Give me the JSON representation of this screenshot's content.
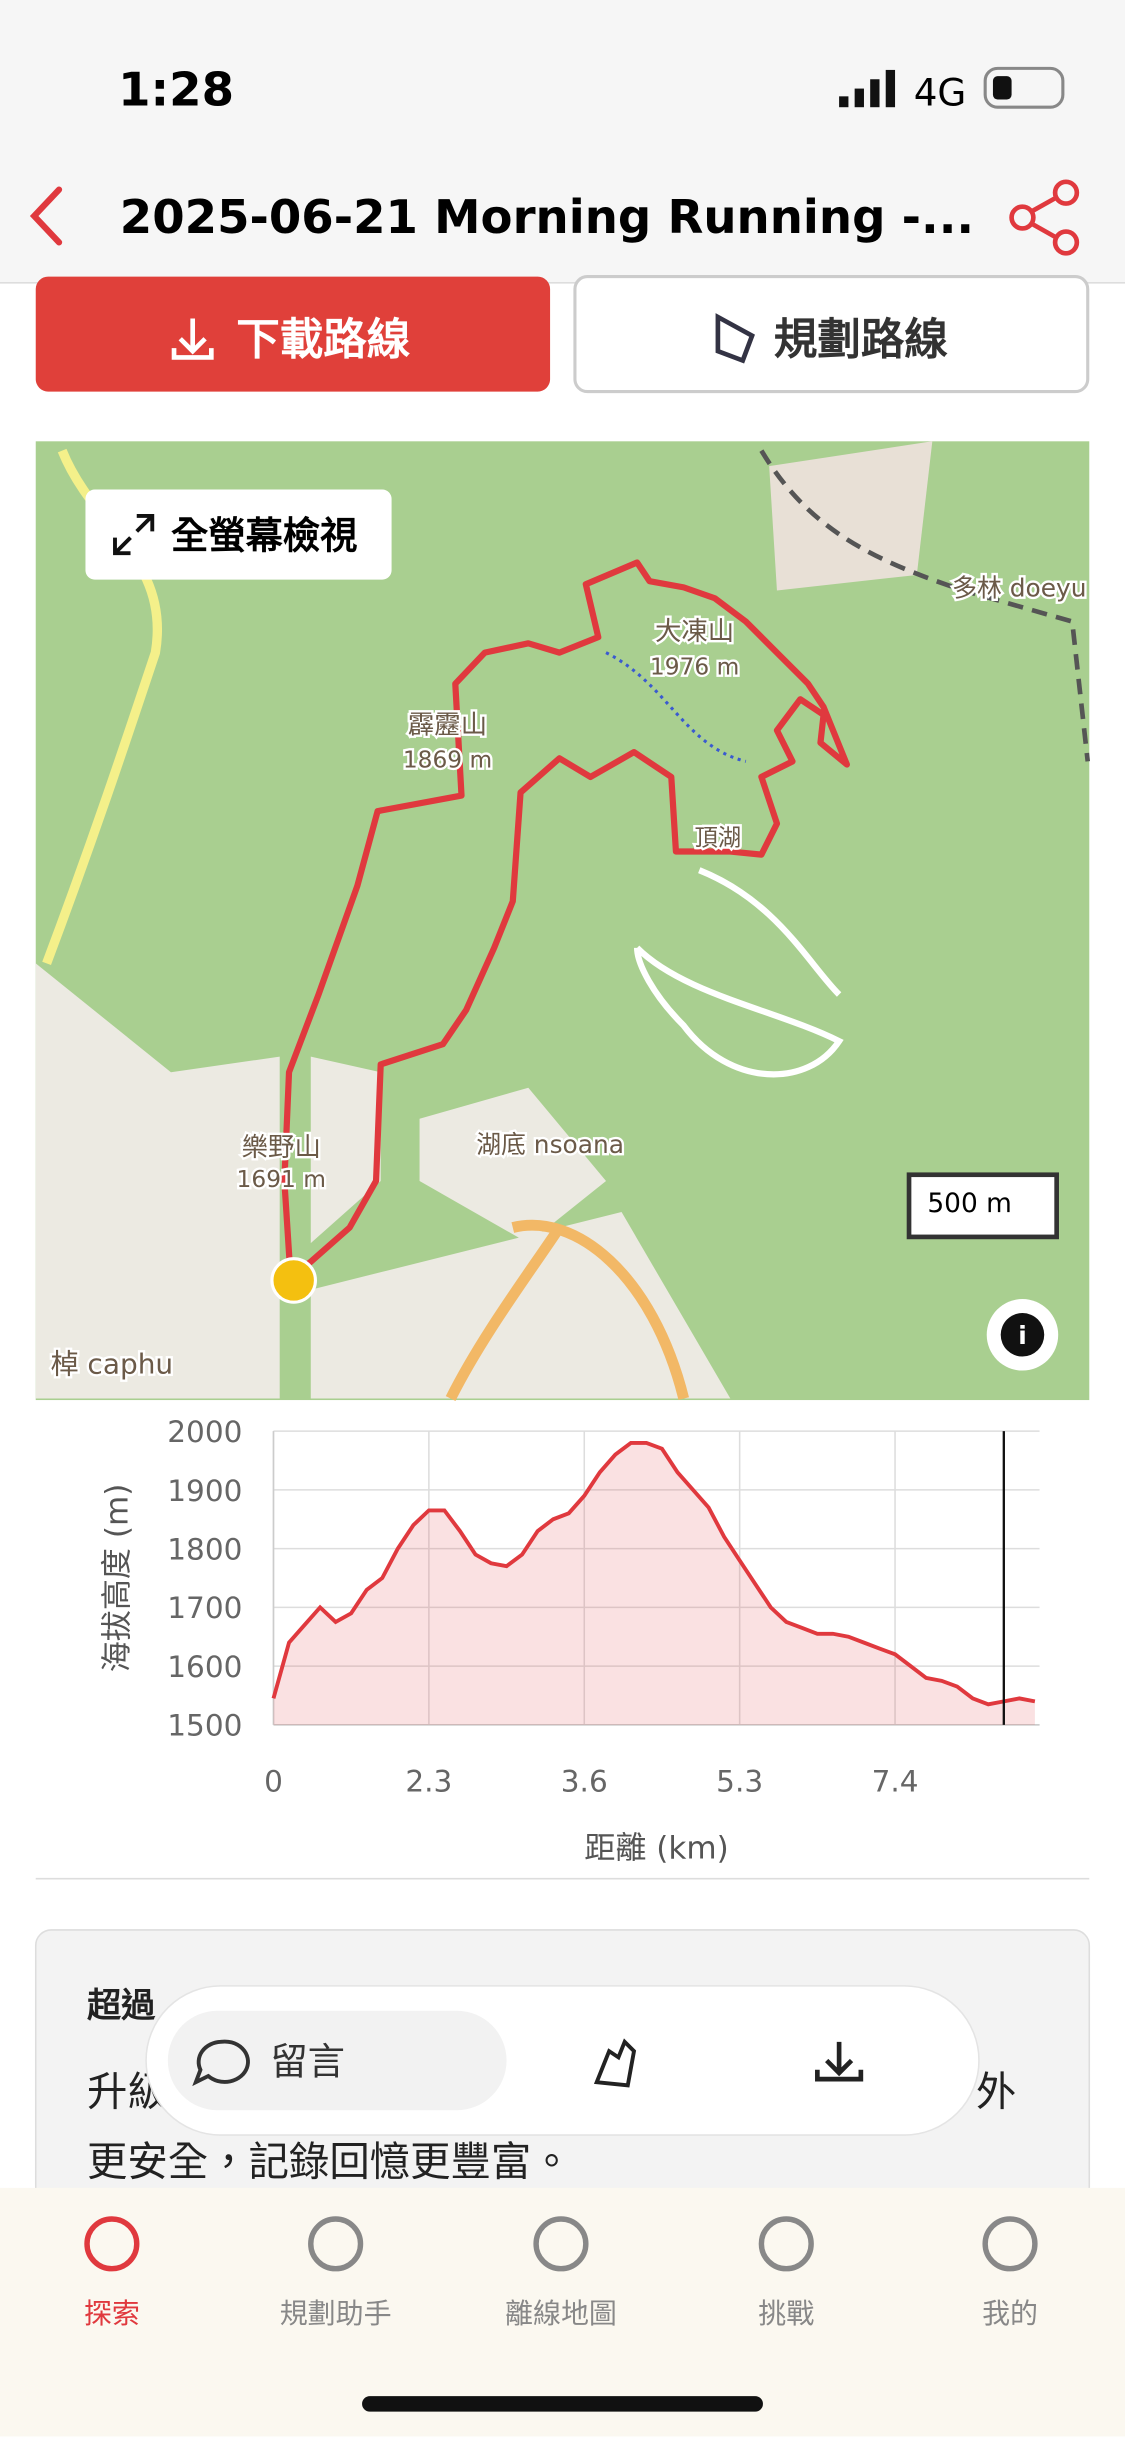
{
  "status": {
    "time": "1:28",
    "network": "4G"
  },
  "nav": {
    "title": "2025-06-21 Morning Running -..."
  },
  "actions": {
    "download": "下載路線",
    "plan": "規劃路線"
  },
  "map": {
    "fullscreen": "全螢幕檢視",
    "scale": "500 m",
    "labels": [
      "大凍山",
      "1976 m",
      "霹靂山",
      "1869 m",
      "樂野山",
      "1691 m",
      "湖底 nsoana",
      "多林 doeyu",
      "頂湖",
      "棹 caphu"
    ]
  },
  "chart_data": {
    "type": "area",
    "y_label": "海拔高度 (m)",
    "x_label": "距離 (km)",
    "color": "#e0393e",
    "categories": [
      "0",
      null,
      null,
      null,
      null,
      null,
      null,
      null,
      null,
      null,
      "2.3",
      null,
      null,
      null,
      null,
      null,
      null,
      null,
      null,
      null,
      "3.6",
      null,
      null,
      null,
      null,
      null,
      null,
      null,
      null,
      null,
      "5.3",
      null,
      null,
      null,
      null,
      null,
      null,
      null,
      null,
      null,
      "7.4",
      null,
      null,
      null,
      null,
      null,
      null,
      null,
      null,
      null
    ],
    "values": [
      1545,
      1640,
      1670,
      1700,
      1675,
      1690,
      1730,
      1750,
      1800,
      1840,
      1865,
      1865,
      1830,
      1790,
      1775,
      1770,
      1790,
      1830,
      1850,
      1860,
      1890,
      1930,
      1960,
      1980,
      1980,
      1970,
      1930,
      1900,
      1870,
      1820,
      1780,
      1740,
      1700,
      1675,
      1665,
      1655,
      1655,
      1650,
      1640,
      1630,
      1620,
      1600,
      1580,
      1575,
      1565,
      1545,
      1535,
      1540,
      1545,
      1540
    ],
    "ylim": [
      1500,
      2000
    ],
    "yticks": [
      1500,
      1600,
      1700,
      1800,
      1900,
      2000
    ],
    "grid": true
  },
  "card": {
    "heading": "超過",
    "line1_start": "升級",
    "line1_end": "外",
    "line2": "更安全，記錄回憶更豐富。"
  },
  "floating_bar": {
    "comment": "留言"
  },
  "tabs": [
    "探索",
    "規劃助手",
    "離線地圖",
    "挑戰",
    "我的"
  ]
}
